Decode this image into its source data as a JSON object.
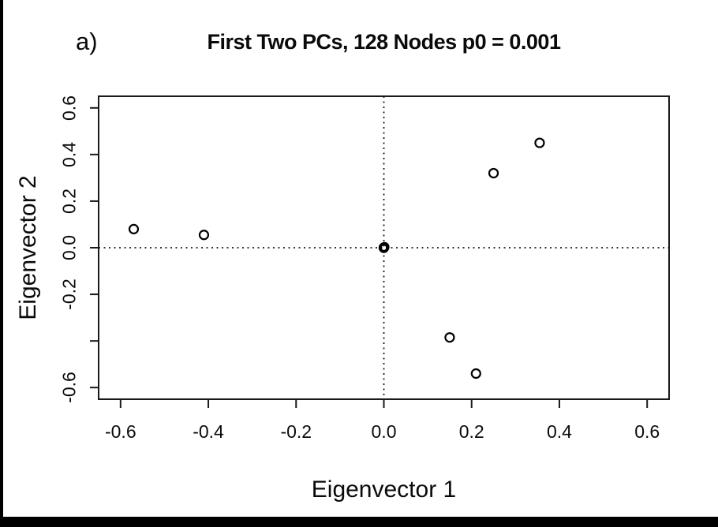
{
  "figure": {
    "panel_label": "a)",
    "title": "First Two PCs, 128 Nodes p0 = 0.001",
    "xlabel": "Eigenvector 1",
    "ylabel": "Eigenvector 2"
  },
  "chart_data": {
    "type": "scatter",
    "title": "First Two PCs, 128 Nodes p0 = 0.001",
    "xlabel": "Eigenvector 1",
    "ylabel": "Eigenvector 2",
    "xlim": [
      -0.65,
      0.65
    ],
    "ylim": [
      -0.65,
      0.65
    ],
    "grid": false,
    "marker": "open-circle",
    "reference_lines": {
      "horizontal_y": 0.0,
      "vertical_x": 0.0,
      "style": "dotted"
    },
    "x_ticks": [
      {
        "value": -0.6,
        "label": "-0.6"
      },
      {
        "value": -0.4,
        "label": "-0.4"
      },
      {
        "value": -0.2,
        "label": "-0.2"
      },
      {
        "value": 0.0,
        "label": "0.0"
      },
      {
        "value": 0.2,
        "label": "0.2"
      },
      {
        "value": 0.4,
        "label": "0.4"
      },
      {
        "value": 0.6,
        "label": "0.6"
      }
    ],
    "y_ticks": [
      {
        "value": 0.6,
        "label": "0.6"
      },
      {
        "value": 0.4,
        "label": "0.4"
      },
      {
        "value": 0.2,
        "label": "0.2"
      },
      {
        "value": 0.0,
        "label": "0.0"
      },
      {
        "value": -0.2,
        "label": "-0.2"
      },
      {
        "value": -0.4,
        "label": ""
      },
      {
        "value": -0.6,
        "label": "-0.6"
      }
    ],
    "points": [
      {
        "x": -0.57,
        "y": 0.08,
        "overplotted": false
      },
      {
        "x": -0.41,
        "y": 0.055,
        "overplotted": false
      },
      {
        "x": 0.355,
        "y": 0.45,
        "overplotted": false
      },
      {
        "x": 0.25,
        "y": 0.32,
        "overplotted": false
      },
      {
        "x": 0.15,
        "y": -0.385,
        "overplotted": false
      },
      {
        "x": 0.21,
        "y": -0.54,
        "overplotted": false
      },
      {
        "x": 0.0,
        "y": 0.0,
        "overplotted": true
      }
    ],
    "colors": {
      "marker_stroke": "#000000",
      "axis": "#1a1a1a",
      "reference_line": "#1a1a1a",
      "border_bars": "#000000",
      "background": "#ffffff"
    }
  }
}
